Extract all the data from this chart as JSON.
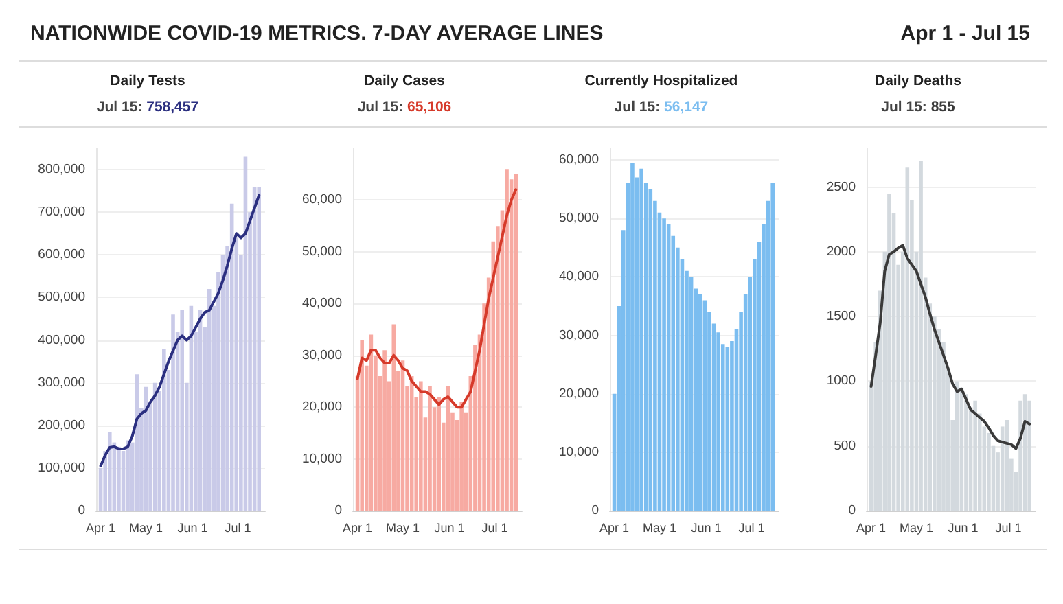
{
  "chart_data": [
    {
      "type": "other",
      "title": "NATIONWIDE COVID-19 METRICS. 7-DAY AVERAGE LINES",
      "subtitle": "Apr 1 - Jul 15"
    },
    {
      "type": "bar",
      "title": "Daily Tests",
      "subtitle": "Jul 15: 758,457",
      "grid": "y",
      "x": [
        "--04-01",
        "--04-04",
        "--04-07",
        "--04-10",
        "--04-13",
        "--04-16",
        "--04-19",
        "--04-22",
        "--04-25",
        "--04-28",
        "--05-01",
        "--05-04",
        "--05-07",
        "--05-10",
        "--05-13",
        "--05-16",
        "--05-19",
        "--05-22",
        "--05-25",
        "--05-28",
        "--05-31",
        "--06-03",
        "--06-06",
        "--06-09",
        "--06-12",
        "--06-15",
        "--06-18",
        "--06-21",
        "--06-24",
        "--06-27",
        "--06-30",
        "--07-03",
        "--07-06",
        "--07-09",
        "--07-12",
        "--07-15"
      ],
      "xlim": [
        "--03-29",
        "--07-19"
      ],
      "xticks": [
        {
          "value": "--04-01",
          "label": "Apr 1"
        },
        {
          "value": "--05-01",
          "label": "May 1"
        },
        {
          "value": "--06-01",
          "label": "Jun 1"
        },
        {
          "value": "--07-01",
          "label": "Jul 1"
        }
      ],
      "ylim": [
        0,
        850000
      ],
      "yticks": [
        {
          "value": 0,
          "label": "0"
        },
        {
          "value": 100000,
          "label": "100,000"
        },
        {
          "value": 200000,
          "label": "200,000"
        },
        {
          "value": 300000,
          "label": "300,000"
        },
        {
          "value": 400000,
          "label": "400,000"
        },
        {
          "value": 500000,
          "label": "500,000"
        },
        {
          "value": 600000,
          "label": "600,000"
        },
        {
          "value": 700000,
          "label": "700,000"
        },
        {
          "value": 800000,
          "label": "800,000"
        }
      ],
      "series": [
        {
          "type": "bar",
          "color": "#c9cae8",
          "values": [
            100000,
            140000,
            185000,
            160000,
            150000,
            140000,
            165000,
            160000,
            320000,
            240000,
            290000,
            250000,
            300000,
            280000,
            380000,
            330000,
            460000,
            420000,
            470000,
            300000,
            480000,
            420000,
            470000,
            430000,
            520000,
            480000,
            560000,
            600000,
            620000,
            720000,
            640000,
            600000,
            830000,
            700000,
            760000,
            760000
          ]
        },
        {
          "type": "line",
          "color": "#2b2f80",
          "values": [
            105000,
            130000,
            148000,
            150000,
            145000,
            145000,
            150000,
            175000,
            215000,
            228000,
            235000,
            255000,
            270000,
            290000,
            320000,
            350000,
            375000,
            400000,
            410000,
            400000,
            410000,
            430000,
            450000,
            465000,
            470000,
            490000,
            510000,
            540000,
            575000,
            615000,
            650000,
            640000,
            650000,
            680000,
            710000,
            740000
          ]
        }
      ]
    },
    {
      "type": "bar",
      "title": "Daily Cases",
      "subtitle": "Jul 15: 65,106",
      "grid": "y",
      "x": [
        "--04-01",
        "--04-04",
        "--04-07",
        "--04-10",
        "--04-13",
        "--04-16",
        "--04-19",
        "--04-22",
        "--04-25",
        "--04-28",
        "--05-01",
        "--05-04",
        "--05-07",
        "--05-10",
        "--05-13",
        "--05-16",
        "--05-19",
        "--05-22",
        "--05-25",
        "--05-28",
        "--05-31",
        "--06-03",
        "--06-06",
        "--06-09",
        "--06-12",
        "--06-15",
        "--06-18",
        "--06-21",
        "--06-24",
        "--06-27",
        "--06-30",
        "--07-03",
        "--07-06",
        "--07-09",
        "--07-12",
        "--07-15"
      ],
      "xlim": [
        "--03-29",
        "--07-19"
      ],
      "xticks": [
        {
          "value": "--04-01",
          "label": "Apr 1"
        },
        {
          "value": "--05-01",
          "label": "May 1"
        },
        {
          "value": "--06-01",
          "label": "Jun 1"
        },
        {
          "value": "--07-01",
          "label": "Jul 1"
        }
      ],
      "ylim": [
        0,
        70000
      ],
      "yticks": [
        {
          "value": 0,
          "label": "0"
        },
        {
          "value": 10000,
          "label": "10,000"
        },
        {
          "value": 20000,
          "label": "20,000"
        },
        {
          "value": 30000,
          "label": "30,000"
        },
        {
          "value": 40000,
          "label": "40,000"
        },
        {
          "value": 50000,
          "label": "50,000"
        },
        {
          "value": 60000,
          "label": "60,000"
        }
      ],
      "series": [
        {
          "type": "bar",
          "color": "#f7aaa2",
          "values": [
            26000,
            33000,
            28000,
            34000,
            30000,
            26000,
            31000,
            25000,
            36000,
            27000,
            29000,
            24000,
            26000,
            22000,
            25000,
            18000,
            24000,
            20000,
            22000,
            17000,
            24000,
            19000,
            17500,
            21000,
            19000,
            26000,
            32000,
            34000,
            40000,
            45000,
            52000,
            55000,
            58000,
            66000,
            64000,
            65000
          ]
        },
        {
          "type": "line",
          "color": "#d63a2a",
          "values": [
            25500,
            29500,
            29000,
            31000,
            31000,
            29500,
            28500,
            28500,
            30000,
            29000,
            27500,
            27000,
            25000,
            24000,
            23000,
            23000,
            22500,
            21500,
            20500,
            21500,
            22000,
            21000,
            20000,
            20000,
            21500,
            23000,
            27000,
            31000,
            36000,
            41000,
            45000,
            49000,
            53000,
            57000,
            60000,
            62000
          ]
        }
      ]
    },
    {
      "type": "bar",
      "title": "Currently Hospitalized",
      "subtitle": "Jul 15: 56,147",
      "grid": "y",
      "x": [
        "--04-01",
        "--04-04",
        "--04-07",
        "--04-10",
        "--04-13",
        "--04-16",
        "--04-19",
        "--04-22",
        "--04-25",
        "--04-28",
        "--05-01",
        "--05-04",
        "--05-07",
        "--05-10",
        "--05-13",
        "--05-16",
        "--05-19",
        "--05-22",
        "--05-25",
        "--05-28",
        "--05-31",
        "--06-03",
        "--06-06",
        "--06-09",
        "--06-12",
        "--06-15",
        "--06-18",
        "--06-21",
        "--06-24",
        "--06-27",
        "--06-30",
        "--07-03",
        "--07-06",
        "--07-09",
        "--07-12",
        "--07-15"
      ],
      "xlim": [
        "--03-29",
        "--07-19"
      ],
      "xticks": [
        {
          "value": "--04-01",
          "label": "Apr 1"
        },
        {
          "value": "--05-01",
          "label": "May 1"
        },
        {
          "value": "--06-01",
          "label": "Jun 1"
        },
        {
          "value": "--07-01",
          "label": "Jul 1"
        }
      ],
      "ylim": [
        0,
        62000
      ],
      "yticks": [
        {
          "value": 0,
          "label": "0"
        },
        {
          "value": 10000,
          "label": "10,000"
        },
        {
          "value": 20000,
          "label": "20,000"
        },
        {
          "value": 30000,
          "label": "30,000"
        },
        {
          "value": 40000,
          "label": "40,000"
        },
        {
          "value": 50000,
          "label": "50,000"
        },
        {
          "value": 60000,
          "label": "60,000"
        }
      ],
      "series": [
        {
          "type": "bar",
          "color": "#7bbdf0",
          "values": [
            20000,
            35000,
            48000,
            56000,
            59500,
            57000,
            58500,
            56000,
            55000,
            53000,
            51000,
            50000,
            49000,
            47000,
            45000,
            43000,
            41000,
            40000,
            38000,
            37000,
            36000,
            34000,
            32000,
            30500,
            28500,
            28000,
            29000,
            31000,
            34000,
            37000,
            40000,
            43000,
            46000,
            49000,
            53000,
            56000
          ]
        }
      ]
    },
    {
      "type": "bar",
      "title": "Daily Deaths",
      "subtitle": "Jul 15: 855",
      "grid": "y",
      "x": [
        "--04-01",
        "--04-04",
        "--04-07",
        "--04-10",
        "--04-13",
        "--04-16",
        "--04-19",
        "--04-22",
        "--04-25",
        "--04-28",
        "--05-01",
        "--05-04",
        "--05-07",
        "--05-10",
        "--05-13",
        "--05-16",
        "--05-19",
        "--05-22",
        "--05-25",
        "--05-28",
        "--05-31",
        "--06-03",
        "--06-06",
        "--06-09",
        "--06-12",
        "--06-15",
        "--06-18",
        "--06-21",
        "--06-24",
        "--06-27",
        "--06-30",
        "--07-03",
        "--07-06",
        "--07-09",
        "--07-12",
        "--07-15"
      ],
      "xlim": [
        "--03-29",
        "--07-19"
      ],
      "xticks": [
        {
          "value": "--04-01",
          "label": "Apr 1"
        },
        {
          "value": "--05-01",
          "label": "May 1"
        },
        {
          "value": "--06-01",
          "label": "Jun 1"
        },
        {
          "value": "--07-01",
          "label": "Jul 1"
        }
      ],
      "ylim": [
        0,
        2800
      ],
      "yticks": [
        0,
        500,
        1000,
        1500,
        2000,
        2500
      ],
      "series": [
        {
          "type": "bar",
          "color": "#d3d9de",
          "values": [
            1000,
            1300,
            1700,
            2000,
            2450,
            2300,
            1900,
            2000,
            2650,
            2400,
            2000,
            2700,
            1800,
            1600,
            1500,
            1400,
            1300,
            1100,
            700,
            1000,
            950,
            900,
            800,
            850,
            750,
            650,
            600,
            500,
            450,
            650,
            700,
            400,
            300,
            850,
            900,
            850
          ]
        },
        {
          "type": "line",
          "color": "#3a3a3a",
          "values": [
            960,
            1200,
            1450,
            1850,
            1980,
            2000,
            2030,
            2050,
            1950,
            1900,
            1850,
            1750,
            1650,
            1520,
            1400,
            1300,
            1200,
            1100,
            980,
            920,
            940,
            860,
            780,
            750,
            720,
            690,
            640,
            580,
            540,
            530,
            520,
            510,
            480,
            560,
            690,
            670
          ]
        }
      ]
    }
  ]
}
